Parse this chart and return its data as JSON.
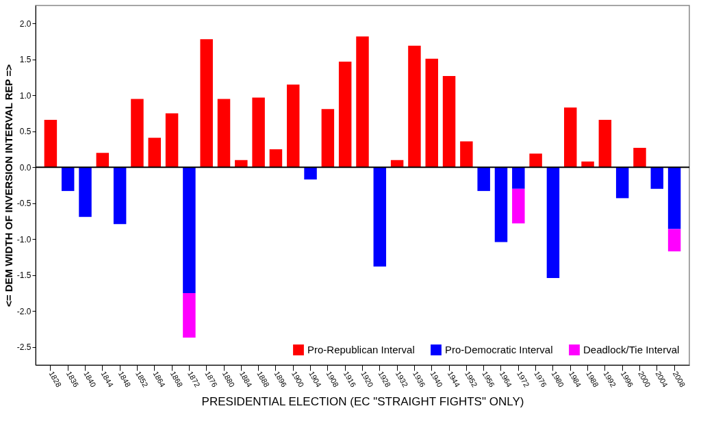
{
  "chart_data": {
    "type": "bar",
    "stacked": true,
    "xlabel": "PRESIDENTIAL ELECTION  (EC \"STRAIGHT FIGHTS\" ONLY)",
    "ylabel": "<= DEM            WIDTH OF INVERSION INTERVAL            REP =>",
    "categories": [
      "1828",
      "1836",
      "1840",
      "1844",
      "1848",
      "1852",
      "1864",
      "1868",
      "1872",
      "1876",
      "1880",
      "1884",
      "1888",
      "1896",
      "1900",
      "1904",
      "1908",
      "1916",
      "1920",
      "1928",
      "1932",
      "1936",
      "1940",
      "1944",
      "1952",
      "1956",
      "1964",
      "1972",
      "1976",
      "1980",
      "1984",
      "1988",
      "1992",
      "1996",
      "2000",
      "2004",
      "2008"
    ],
    "series": [
      {
        "name": "Pro-Republican Interval",
        "color": "#ff0000",
        "values": [
          0.66,
          null,
          null,
          0.2,
          null,
          0.95,
          0.41,
          0.75,
          null,
          1.78,
          0.95,
          0.1,
          0.97,
          0.25,
          1.15,
          null,
          0.81,
          1.47,
          1.82,
          null,
          0.1,
          1.69,
          1.51,
          1.27,
          0.36,
          null,
          null,
          null,
          0.19,
          null,
          0.83,
          0.08,
          0.66,
          null,
          0.27,
          null,
          null
        ]
      },
      {
        "name": "Pro-Democratic Interval",
        "color": "#0000ff",
        "values": [
          null,
          -0.33,
          -0.69,
          null,
          -0.79,
          null,
          null,
          null,
          -1.75,
          null,
          null,
          null,
          null,
          null,
          null,
          -0.17,
          null,
          null,
          null,
          -1.38,
          null,
          null,
          null,
          null,
          null,
          -0.33,
          -1.04,
          -0.3,
          null,
          -1.54,
          null,
          null,
          null,
          -0.43,
          null,
          -0.3,
          -0.86
        ]
      },
      {
        "name": "Deadlock/Tie Interval",
        "color": "#ff00ff",
        "values": [
          null,
          null,
          null,
          null,
          null,
          null,
          null,
          null,
          -0.62,
          null,
          null,
          null,
          null,
          null,
          null,
          null,
          null,
          null,
          null,
          null,
          null,
          null,
          null,
          null,
          null,
          null,
          null,
          -0.48,
          null,
          null,
          null,
          null,
          null,
          null,
          null,
          null,
          -0.31
        ]
      }
    ],
    "ylim": [
      -2.75,
      2.25
    ],
    "yticks": [
      {
        "value": -2.5,
        "label": "-2.5"
      },
      {
        "value": -2,
        "label": "-2.0"
      },
      {
        "value": -1.5,
        "label": "-1.5"
      },
      {
        "value": -1,
        "label": "-1.0"
      },
      {
        "value": -0.5,
        "label": "-0.5"
      },
      {
        "value": 0,
        "label": "0.0"
      },
      {
        "value": 0.5,
        "label": "0.5"
      },
      {
        "value": 1,
        "label": "1.0"
      },
      {
        "value": 1.5,
        "label": "1.5"
      },
      {
        "value": 2,
        "label": "2.0"
      }
    ],
    "ref_lines": [
      {
        "axis": "y",
        "value": 0,
        "color": "#000000"
      }
    ],
    "grid": false,
    "legend": "bottom right"
  }
}
